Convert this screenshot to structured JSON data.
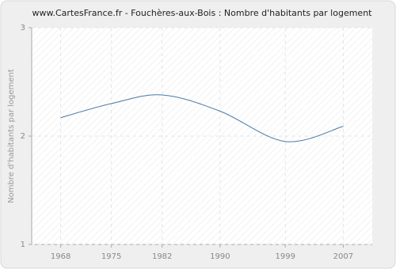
{
  "chart_data": {
    "type": "line",
    "title": "www.CartesFrance.fr - Fouchères-aux-Bois : Nombre d'habitants par logement",
    "y_label": "Nombre d'habitants par logement",
    "x": [
      1968,
      1975,
      1982,
      1990,
      1999,
      2007
    ],
    "series": [
      {
        "name": "Nombre d'habitants par logement",
        "color": "#4a78a6",
        "values": [
          2.17,
          2.3,
          2.38,
          2.23,
          1.95,
          2.09
        ]
      }
    ],
    "xlim": [
      1964,
      2011
    ],
    "xticks": [
      1968,
      1975,
      1982,
      1990,
      1999,
      2007
    ],
    "ylim": [
      1,
      3
    ],
    "yticks": [
      1,
      2,
      3
    ],
    "grid": true
  }
}
